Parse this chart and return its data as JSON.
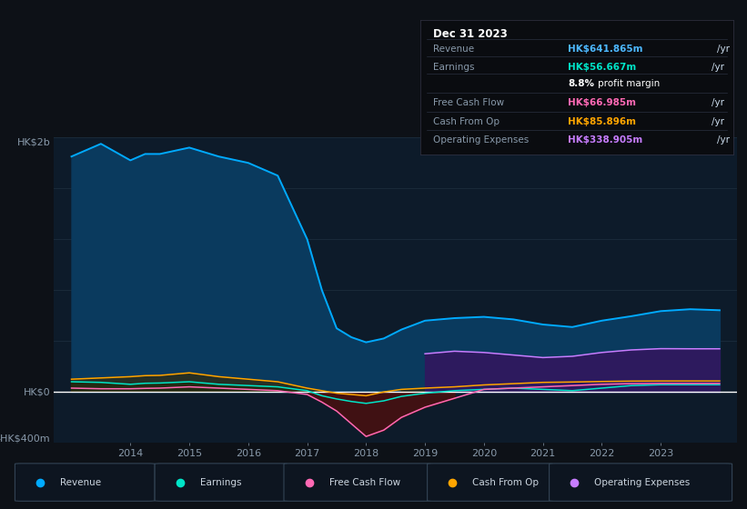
{
  "bg_color": "#0d1117",
  "plot_bg_color": "#0d1b2a",
  "title_box": {
    "date": "Dec 31 2023",
    "rows": [
      {
        "label": "Revenue",
        "value": "HK$641.865m",
        "unit": "/yr",
        "value_color": "#4db8ff"
      },
      {
        "label": "Earnings",
        "value": "HK$56.667m",
        "unit": "/yr",
        "value_color": "#00e5c8"
      },
      {
        "label": "",
        "value": "8.8%",
        "unit": " profit margin",
        "value_color": "#ffffff"
      },
      {
        "label": "Free Cash Flow",
        "value": "HK$66.985m",
        "unit": "/yr",
        "value_color": "#ff69b4"
      },
      {
        "label": "Cash From Op",
        "value": "HK$85.896m",
        "unit": "/yr",
        "value_color": "#ffa500"
      },
      {
        "label": "Operating Expenses",
        "value": "HK$338.905m",
        "unit": "/yr",
        "value_color": "#c77dff"
      }
    ]
  },
  "ylabel_top": "HK$2b",
  "ylabel_zero": "HK$0",
  "ylabel_bottom": "-HK$400m",
  "ylim": [
    -400,
    2000
  ],
  "xlim_start": 2012.7,
  "xlim_end": 2024.3,
  "xticks": [
    2014,
    2015,
    2016,
    2017,
    2018,
    2019,
    2020,
    2021,
    2022,
    2023
  ],
  "gridline_color": "#1a2a3a",
  "gridline_y": [
    0,
    400,
    800,
    1200,
    1600,
    2000
  ],
  "revenue_color": "#00aaff",
  "revenue_fill": "#0a3a5e",
  "earnings_color": "#00e5c8",
  "fcf_color": "#ff69b4",
  "cashop_color": "#ffa500",
  "opex_color": "#c77dff",
  "opex_fill": "#2d1a5e",
  "years": [
    2013,
    2013.5,
    2014,
    2014.25,
    2014.5,
    2015,
    2015.5,
    2016,
    2016.5,
    2017,
    2017.25,
    2017.5,
    2017.75,
    2018,
    2018.3,
    2018.6,
    2019,
    2019.5,
    2020,
    2020.5,
    2021,
    2021.5,
    2022,
    2022.5,
    2023,
    2023.5,
    2024
  ],
  "revenue": [
    1850,
    1950,
    1820,
    1870,
    1870,
    1920,
    1850,
    1800,
    1700,
    1200,
    800,
    500,
    430,
    390,
    420,
    490,
    560,
    580,
    590,
    570,
    530,
    510,
    560,
    595,
    635,
    650,
    642
  ],
  "earnings": [
    80,
    75,
    60,
    68,
    70,
    80,
    60,
    50,
    40,
    10,
    -30,
    -55,
    -75,
    -90,
    -70,
    -35,
    -10,
    10,
    20,
    30,
    20,
    10,
    30,
    50,
    57,
    57,
    57
  ],
  "fcf": [
    30,
    25,
    25,
    28,
    30,
    40,
    30,
    20,
    10,
    -20,
    -80,
    -150,
    -250,
    -350,
    -300,
    -200,
    -120,
    -50,
    20,
    30,
    40,
    50,
    60,
    65,
    67,
    67,
    67
  ],
  "cashop": [
    100,
    110,
    120,
    128,
    130,
    150,
    120,
    100,
    80,
    30,
    10,
    -10,
    -20,
    -30,
    0,
    20,
    30,
    40,
    55,
    65,
    75,
    78,
    82,
    85,
    86,
    86,
    86
  ],
  "opex": [
    0,
    0,
    0,
    0,
    0,
    0,
    0,
    0,
    0,
    0,
    0,
    0,
    0,
    0,
    0,
    0,
    300,
    320,
    310,
    290,
    270,
    280,
    310,
    330,
    340,
    339,
    339
  ],
  "legend": [
    {
      "label": "Revenue",
      "color": "#00aaff"
    },
    {
      "label": "Earnings",
      "color": "#00e5c8"
    },
    {
      "label": "Free Cash Flow",
      "color": "#ff69b4"
    },
    {
      "label": "Cash From Op",
      "color": "#ffa500"
    },
    {
      "label": "Operating Expenses",
      "color": "#c77dff"
    }
  ]
}
